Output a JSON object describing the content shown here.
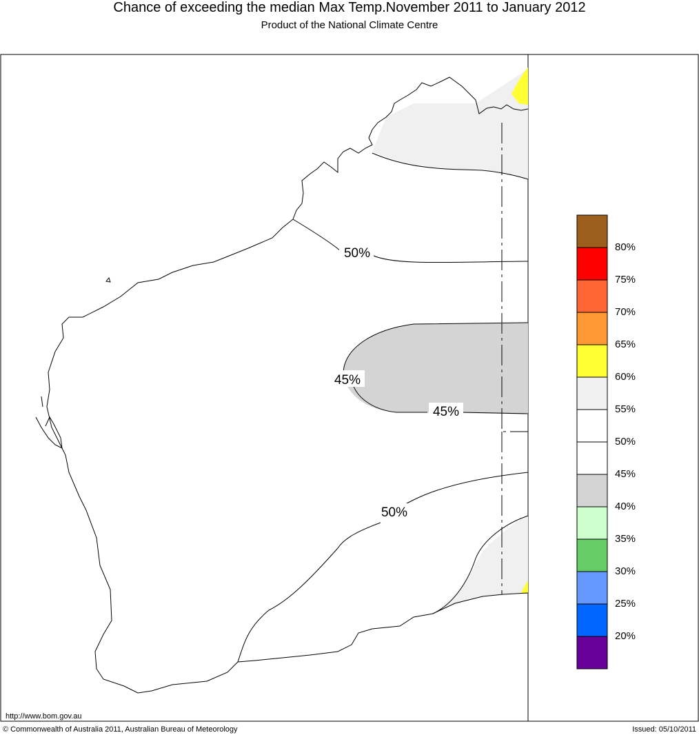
{
  "title": "Chance of exceeding the median Max Temp.November 2011 to January 2012",
  "subtitle": "Product of the National Climate Centre",
  "contour_labels": {
    "north_50": "50%",
    "west_45": "45%",
    "east_45": "45%",
    "south_50": "50%"
  },
  "legend": {
    "colors": [
      "#9c5f1c",
      "#ff0000",
      "#ff6633",
      "#ff9933",
      "#ffff33",
      "#f0f0f0",
      "#ffffff",
      "#ffffff",
      "#d4d4d4",
      "#ccffcc",
      "#66cc66",
      "#6699ff",
      "#0066ff",
      "#660099"
    ],
    "labels": [
      "80%",
      "75%",
      "70%",
      "65%",
      "60%",
      "55%",
      "50%",
      "45%",
      "40%",
      "35%",
      "30%",
      "25%",
      "20%"
    ]
  },
  "fills": {
    "above_55": "#f0f0f0",
    "below_45": "#d4d4d4",
    "above_60": "#ffff33"
  },
  "footer": {
    "url": "http://www.bom.gov.au",
    "copyright": "© Commonwealth of Australia 2011, Australian Bureau of Meteorology",
    "issued": "Issued: 05/10/2011"
  }
}
